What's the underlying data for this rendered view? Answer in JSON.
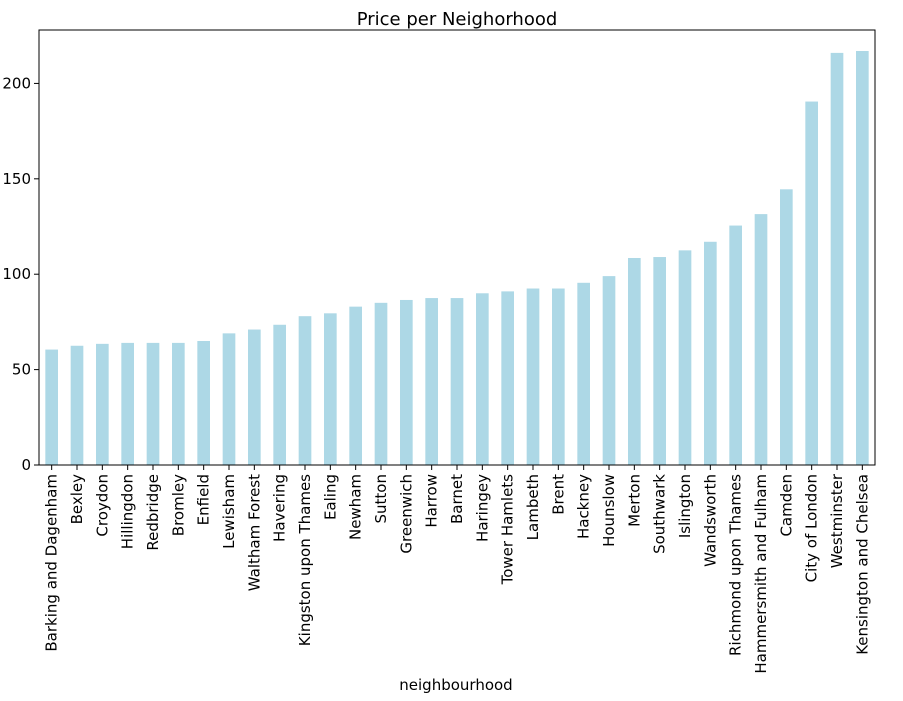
{
  "chart_data": {
    "type": "bar",
    "title": "Price per Neighorhood",
    "xlabel": "neighbourhood",
    "ylabel": "",
    "ylim": [
      0,
      228
    ],
    "yticks": [
      0,
      50,
      100,
      150,
      200
    ],
    "bar_color": "#add8e6",
    "grid": false,
    "categories": [
      "Barking and Dagenham",
      "Bexley",
      "Croydon",
      "Hillingdon",
      "Redbridge",
      "Bromley",
      "Enfield",
      "Lewisham",
      "Waltham Forest",
      "Havering",
      "Kingston upon Thames",
      "Ealing",
      "Newham",
      "Sutton",
      "Greenwich",
      "Harrow",
      "Barnet",
      "Haringey",
      "Tower Hamlets",
      "Lambeth",
      "Brent",
      "Hackney",
      "Hounslow",
      "Merton",
      "Southwark",
      "Islington",
      "Wandsworth",
      "Richmond upon Thames",
      "Hammersmith and Fulham",
      "Camden",
      "City of London",
      "Westminster",
      "Kensington and Chelsea"
    ],
    "values": [
      60.5,
      62.5,
      63.5,
      64,
      64,
      64,
      65,
      69,
      71,
      73.5,
      78,
      79.5,
      83,
      85,
      86.5,
      87.5,
      87.5,
      90,
      91,
      92.5,
      92.5,
      95.5,
      99,
      108.5,
      109,
      112.5,
      117,
      125.5,
      131.5,
      144.5,
      190.5,
      216,
      217
    ]
  }
}
